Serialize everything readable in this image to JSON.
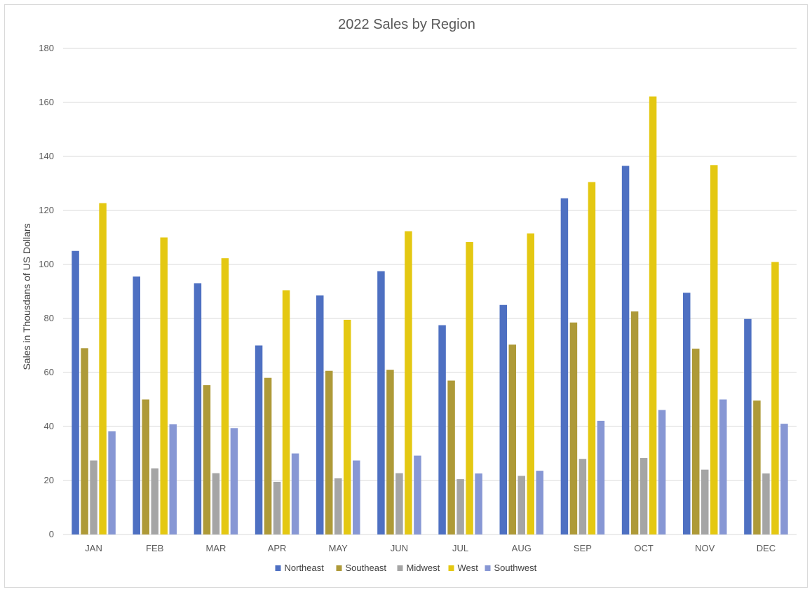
{
  "chart_data": {
    "type": "bar",
    "title": "2022 Sales by Region",
    "xlabel": "",
    "ylabel": "Sales in Thousdans of US Dollars",
    "ylim": [
      0,
      180
    ],
    "yticks": [
      0,
      20,
      40,
      60,
      80,
      100,
      120,
      140,
      160,
      180
    ],
    "grid": true,
    "legend_position": "bottom",
    "categories": [
      "JAN",
      "FEB",
      "MAR",
      "APR",
      "MAY",
      "JUN",
      "JUL",
      "AUG",
      "SEP",
      "OCT",
      "NOV",
      "DEC"
    ],
    "series": [
      {
        "name": "Northeast",
        "color": "#4e70c2",
        "values": [
          105,
          95.5,
          93,
          70,
          88.5,
          97.5,
          77.5,
          85,
          124.5,
          136.5,
          89.5,
          79.8
        ]
      },
      {
        "name": "Southeast",
        "color": "#ae9a38",
        "values": [
          69,
          50,
          55.3,
          58,
          60.6,
          61,
          57,
          70.3,
          78.5,
          82.6,
          68.8,
          49.6
        ]
      },
      {
        "name": "Midwest",
        "color": "#a5a5a5",
        "values": [
          27.4,
          24.5,
          22.7,
          19.5,
          20.8,
          22.7,
          20.5,
          21.7,
          28,
          28.3,
          24,
          22.6
        ]
      },
      {
        "name": "West",
        "color": "#e4c812",
        "values": [
          122.7,
          110,
          102.3,
          90.4,
          79.5,
          112.3,
          108.3,
          111.5,
          130.5,
          162.2,
          136.8,
          100.9
        ]
      },
      {
        "name": "Southwest",
        "color": "#8797d4",
        "values": [
          38.2,
          40.8,
          39.4,
          30,
          27.4,
          29.2,
          22.6,
          23.6,
          42.1,
          46.1,
          50,
          41
        ]
      }
    ]
  }
}
